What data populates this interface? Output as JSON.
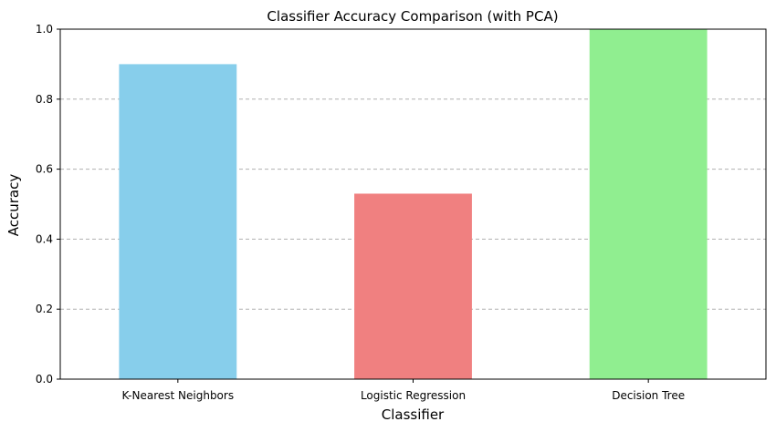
{
  "chart_data": {
    "type": "bar",
    "title": "Classifier Accuracy Comparison (with PCA)",
    "xlabel": "Classifier",
    "ylabel": "Accuracy",
    "categories": [
      "K-Nearest Neighbors",
      "Logistic Regression",
      "Decision Tree"
    ],
    "values": [
      0.9,
      0.53,
      1.0
    ],
    "colors": [
      "#87ceeb",
      "#f08080",
      "#90ee90"
    ],
    "ylim": [
      0,
      1.0
    ],
    "yticks": [
      0.0,
      0.2,
      0.4,
      0.6,
      0.8,
      1.0
    ],
    "ytick_labels": [
      "0.0",
      "0.2",
      "0.4",
      "0.6",
      "0.8",
      "1.0"
    ],
    "grid": "y-axis dashed",
    "legend": "none"
  }
}
